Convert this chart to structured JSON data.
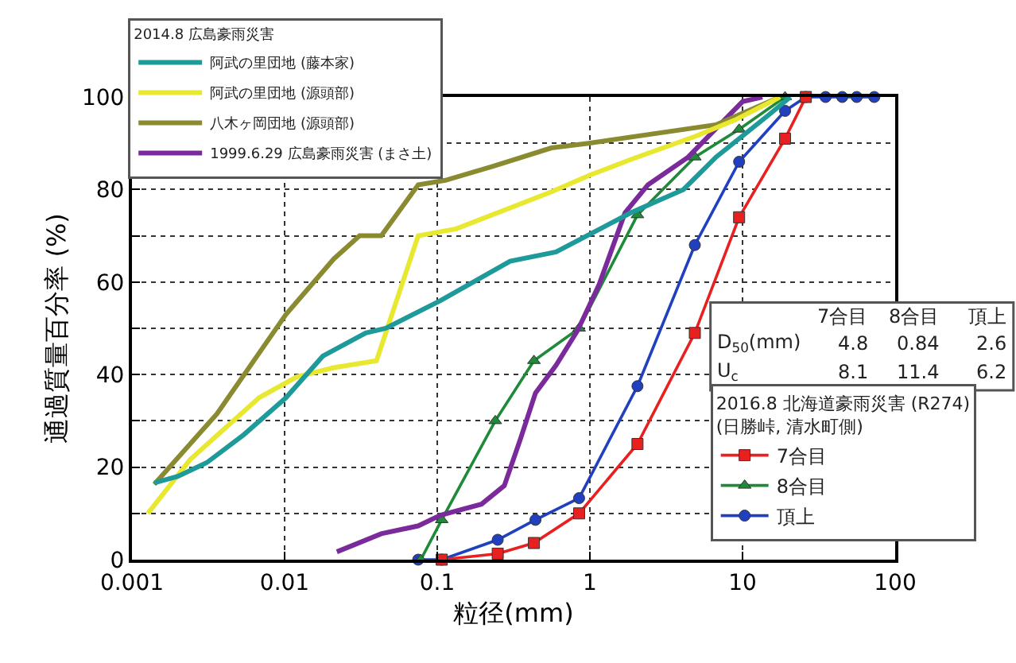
{
  "chart_data": {
    "type": "line",
    "xlabel": "粒径(mm)",
    "ylabel": "通過質量百分率 (%)",
    "legend_title": "2014.8 広島豪雨災害",
    "log": "x",
    "grid": true,
    "legend": "top left",
    "line_style": "solid",
    "xlim": [
      0.001,
      100
    ],
    "xticks": [
      0.001,
      0.01,
      0.1,
      1,
      10,
      100
    ],
    "ylim": [
      0,
      100
    ],
    "yticks": [
      0,
      {
        "value": 10,
        "label": null
      },
      20,
      {
        "value": 30,
        "label": null
      },
      40,
      {
        "value": 50,
        "label": null
      },
      60,
      {
        "value": 70,
        "label": null
      },
      80,
      {
        "value": 90,
        "label": null
      },
      100
    ],
    "annotations": [
      "2016.8 北海道豪雨災害 (R274)\n(日勝峠, 清水町側)",
      "7合目",
      "8合目",
      "頂上",
      "D$_{50}$(mm)",
      "4.8",
      "0.84",
      "2.6",
      "U$_{c}$",
      "8.1",
      "11.4",
      "6.2"
    ],
    "series": [
      {
        "name": "阿武の里団地 (藤本家)",
        "color": "#1e9a9a",
        "marker": "none",
        "x": [
          0.0014,
          0.002,
          0.0031,
          0.0054,
          0.0102,
          0.0178,
          0.034,
          0.046,
          0.105,
          0.3,
          0.6,
          1.86,
          4.1,
          6.7,
          14.7,
          20.6
        ],
        "values": [
          16.6,
          18,
          21,
          27,
          35,
          44,
          49,
          50,
          56,
          64.5,
          66.5,
          75,
          80,
          87,
          96,
          100
        ]
      },
      {
        "name": "阿武の里団地 (源頭部)",
        "color": "#e8e830",
        "marker": "none",
        "x": [
          0.00127,
          0.0024,
          0.0068,
          0.012,
          0.021,
          0.04,
          0.075,
          0.133,
          0.56,
          0.98,
          1.86,
          4.9,
          8.9,
          17.6
        ],
        "values": [
          10,
          21.6,
          35,
          39.5,
          41.5,
          43,
          70,
          71.5,
          79.5,
          83,
          86.5,
          91.5,
          95,
          100
        ]
      },
      {
        "name": "八木ヶ岡団地 (源頭部)",
        "color": "#8a8a30",
        "marker": "none",
        "x": [
          0.0014,
          0.0036,
          0.0102,
          0.021,
          0.031,
          0.043,
          0.075,
          0.113,
          0.23,
          0.56,
          0.98,
          6.7,
          17.6
        ],
        "values": [
          16.3,
          31.5,
          53,
          65,
          70,
          70,
          81,
          82,
          85,
          89,
          90,
          94,
          100
        ]
      },
      {
        "name": "1999.6.29 広島豪雨災害 (まさ土)",
        "color": "#7a2a9a",
        "marker": "none",
        "x": [
          0.022,
          0.043,
          0.075,
          0.105,
          0.195,
          0.275,
          0.35,
          0.44,
          0.6,
          0.83,
          1.15,
          1.7,
          2.4,
          4.4,
          7.1,
          10,
          13.5
        ],
        "values": [
          1.7,
          5.6,
          7.3,
          9.6,
          12,
          16,
          26,
          36,
          42,
          49.5,
          59.5,
          75,
          81,
          87,
          94,
          99,
          100
        ]
      },
      {
        "name": "7合目",
        "color": "#e82020",
        "marker": "square",
        "x": [
          0.107,
          0.249,
          0.43,
          0.85,
          2.05,
          4.87,
          9.5,
          19,
          26
        ],
        "values": [
          0,
          1.3,
          3.6,
          10,
          25,
          49,
          74,
          91,
          100
        ]
      },
      {
        "name": "8合目",
        "color": "#1e8a3a",
        "marker": "triangle",
        "x": [
          0.078,
          0.107,
          0.24,
          0.43,
          0.85,
          2.05,
          4.87,
          9.5,
          19
        ],
        "values": [
          0,
          8.6,
          30,
          43,
          50,
          74.5,
          87,
          93,
          100
        ]
      },
      {
        "name": "頂上",
        "color": "#2040c0",
        "marker": "circle",
        "x": [
          0.075,
          0.107,
          0.249,
          0.44,
          0.85,
          2.05,
          4.87,
          9.5,
          19,
          26,
          35,
          45,
          56,
          73
        ],
        "values": [
          0,
          0,
          4.3,
          8.6,
          13.3,
          37.5,
          68,
          86,
          97,
          100,
          100,
          100,
          100,
          100
        ]
      }
    ]
  }
}
